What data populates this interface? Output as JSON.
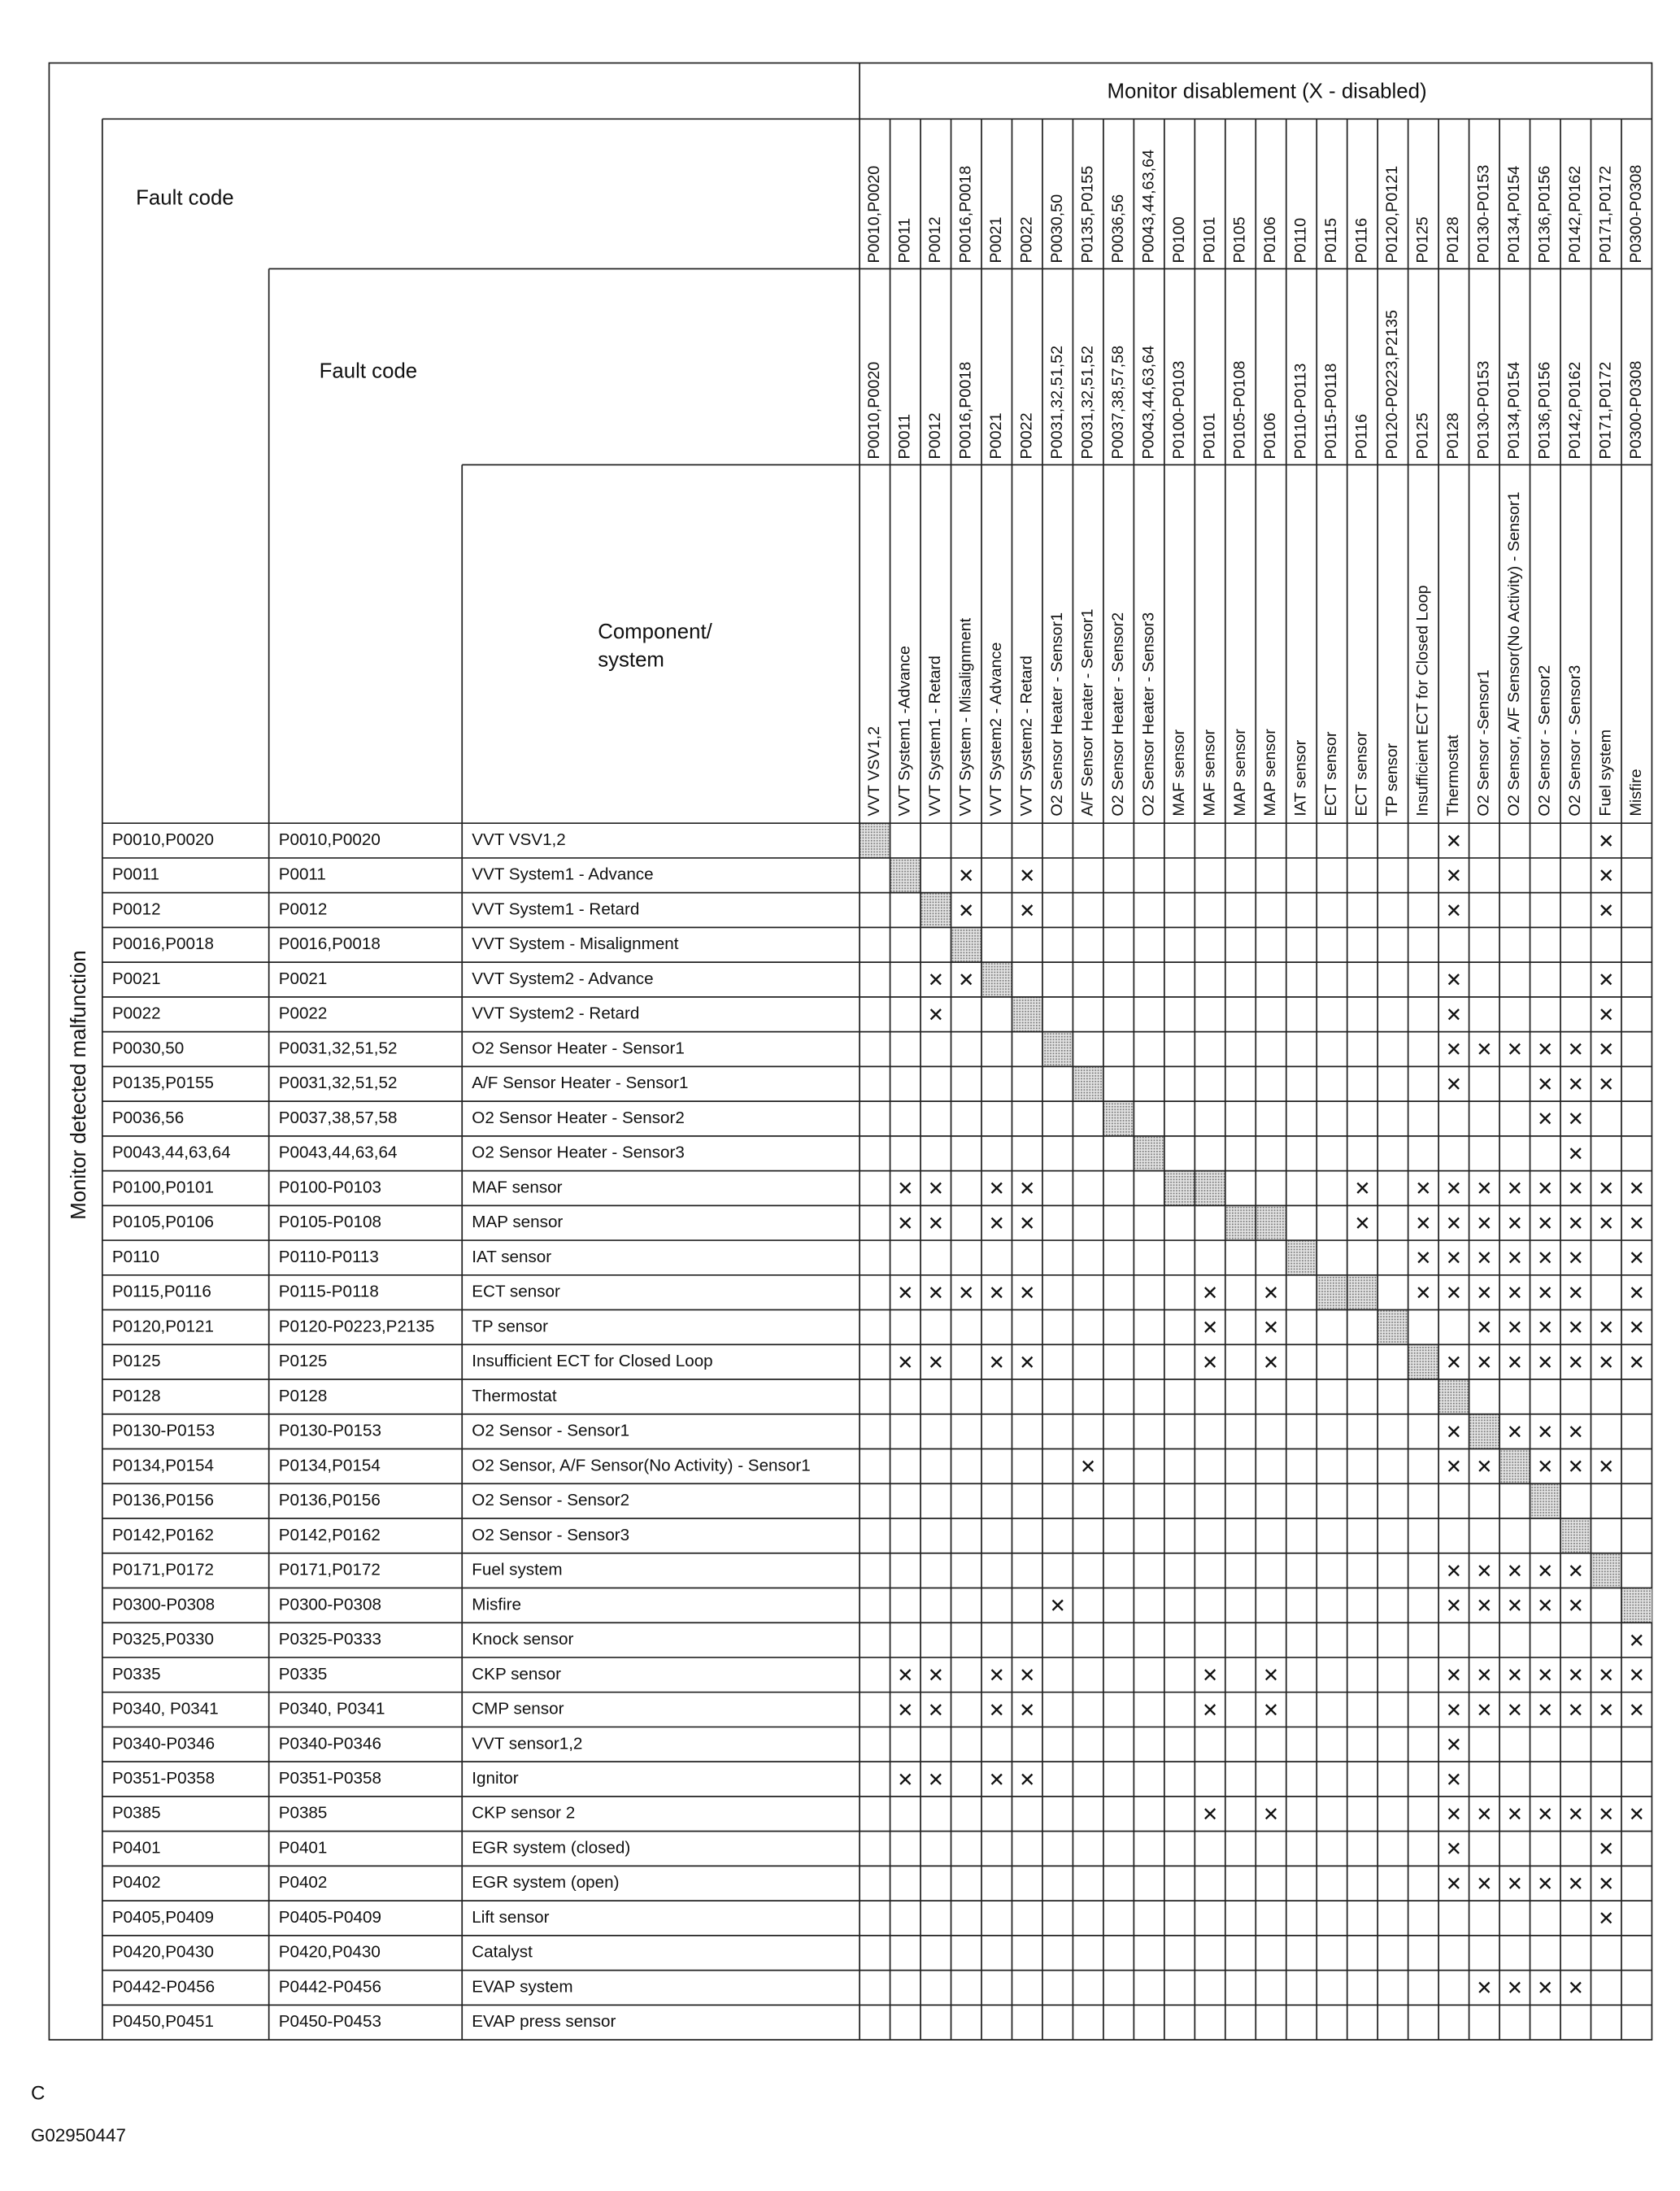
{
  "title": "Monitor disablement (X - disabled)",
  "header_fault_code_1": "Fault code",
  "header_fault_code_2": "Fault code",
  "header_component": [
    "Component/",
    "system"
  ],
  "side_label": "Monitor detected malfunction",
  "x_symbol": "✕",
  "footer": {
    "letter": "C",
    "figure_id": "G02950447"
  },
  "columns": [
    {
      "monitor_code": "P0010,P0020",
      "fault_code": "P0010,P0020",
      "component": "VVT VSV1,2"
    },
    {
      "monitor_code": "P0011",
      "fault_code": "P0011",
      "component": "VVT System1 -Advance"
    },
    {
      "monitor_code": "P0012",
      "fault_code": "P0012",
      "component": "VVT System1 - Retard"
    },
    {
      "monitor_code": "P0016,P0018",
      "fault_code": "P0016,P0018",
      "component": "VVT System - Misalignment"
    },
    {
      "monitor_code": "P0021",
      "fault_code": "P0021",
      "component": "VVT System2 - Advance"
    },
    {
      "monitor_code": "P0022",
      "fault_code": "P0022",
      "component": "VVT System2 - Retard"
    },
    {
      "monitor_code": "P0030,50",
      "fault_code": "P0031,32,51,52",
      "component": "O2 Sensor Heater - Sensor1"
    },
    {
      "monitor_code": "P0135,P0155",
      "fault_code": "P0031,32,51,52",
      "component": "A/F Sensor Heater - Sensor1"
    },
    {
      "monitor_code": "P0036,56",
      "fault_code": "P0037,38,57,58",
      "component": "O2 Sensor Heater - Sensor2"
    },
    {
      "monitor_code": "P0043,44,63,64",
      "fault_code": "P0043,44,63,64",
      "component": "O2 Sensor Heater  - Sensor3"
    },
    {
      "monitor_code": "P0100",
      "fault_code": "P0100-P0103",
      "component": "MAF sensor"
    },
    {
      "monitor_code": "P0101",
      "fault_code": "P0101",
      "component": "MAF sensor"
    },
    {
      "monitor_code": "P0105",
      "fault_code": "P0105-P0108",
      "component": "MAP sensor"
    },
    {
      "monitor_code": "P0106",
      "fault_code": "P0106",
      "component": "MAP sensor"
    },
    {
      "monitor_code": "P0110",
      "fault_code": "P0110-P0113",
      "component": "IAT sensor"
    },
    {
      "monitor_code": "P0115",
      "fault_code": "P0115-P0118",
      "component": "ECT sensor"
    },
    {
      "monitor_code": "P0116",
      "fault_code": "P0116",
      "component": "ECT sensor"
    },
    {
      "monitor_code": "P0120,P0121",
      "fault_code": "P0120-P0223,P2135",
      "component": "TP sensor"
    },
    {
      "monitor_code": "P0125",
      "fault_code": "P0125",
      "component": "Insufficient ECT for Closed Loop"
    },
    {
      "monitor_code": "P0128",
      "fault_code": "P0128",
      "component": "Thermostat"
    },
    {
      "monitor_code": "P0130-P0153",
      "fault_code": "P0130-P0153",
      "component": "O2 Sensor -Sensor1"
    },
    {
      "monitor_code": "P0134,P0154",
      "fault_code": "P0134,P0154",
      "component": "O2 Sensor, A/F Sensor(No Activity) - Sensor1"
    },
    {
      "monitor_code": "P0136,P0156",
      "fault_code": "P0136,P0156",
      "component": "O2 Sensor - Sensor2"
    },
    {
      "monitor_code": "P0142,P0162",
      "fault_code": "P0142,P0162",
      "component": "O2 Sensor - Sensor3"
    },
    {
      "monitor_code": "P0171,P0172",
      "fault_code": "P0171,P0172",
      "component": "Fuel system"
    },
    {
      "monitor_code": "P0300-P0308",
      "fault_code": "P0300-P0308",
      "component": "Misfire"
    }
  ],
  "rows": [
    {
      "monitor_code": "P0010,P0020",
      "fault_code": "P0010,P0020",
      "component": "VVT VSV1,2",
      "x": [
        19,
        24
      ],
      "shaded": [
        0
      ]
    },
    {
      "monitor_code": "P0011",
      "fault_code": "P0011",
      "component": "VVT System1 - Advance",
      "x": [
        3,
        5,
        19,
        24
      ],
      "shaded": [
        1
      ]
    },
    {
      "monitor_code": "P0012",
      "fault_code": "P0012",
      "component": "VVT System1 - Retard",
      "x": [
        3,
        5,
        19,
        24
      ],
      "shaded": [
        2
      ]
    },
    {
      "monitor_code": "P0016,P0018",
      "fault_code": "P0016,P0018",
      "component": "VVT System - Misalignment",
      "x": [],
      "shaded": [
        3
      ]
    },
    {
      "monitor_code": "P0021",
      "fault_code": "P0021",
      "component": "VVT System2 - Advance",
      "x": [
        2,
        3,
        19,
        24
      ],
      "shaded": [
        4
      ]
    },
    {
      "monitor_code": "P0022",
      "fault_code": "P0022",
      "component": "VVT System2 - Retard",
      "x": [
        2,
        19,
        24
      ],
      "shaded": [
        5
      ]
    },
    {
      "monitor_code": "P0030,50",
      "fault_code": "P0031,32,51,52",
      "component": "O2 Sensor Heater - Sensor1",
      "x": [
        19,
        20,
        21,
        22,
        23,
        24
      ],
      "shaded": [
        6
      ]
    },
    {
      "monitor_code": "P0135,P0155",
      "fault_code": "P0031,32,51,52",
      "component": "A/F Sensor Heater  - Sensor1",
      "x": [
        19,
        22,
        23,
        24
      ],
      "shaded": [
        7
      ]
    },
    {
      "monitor_code": "P0036,56",
      "fault_code": "P0037,38,57,58",
      "component": "O2 Sensor Heater - Sensor2",
      "x": [
        22,
        23
      ],
      "shaded": [
        8
      ]
    },
    {
      "monitor_code": "P0043,44,63,64",
      "fault_code": "P0043,44,63,64",
      "component": "O2 Sensor Heater - Sensor3",
      "x": [
        23
      ],
      "shaded": [
        9
      ]
    },
    {
      "monitor_code": "P0100,P0101",
      "fault_code": "P0100-P0103",
      "component": "MAF sensor",
      "x": [
        1,
        2,
        4,
        5,
        16,
        18,
        19,
        20,
        21,
        22,
        23,
        24,
        25
      ],
      "shaded": [
        10,
        11
      ]
    },
    {
      "monitor_code": "P0105,P0106",
      "fault_code": "P0105-P0108",
      "component": "MAP sensor",
      "x": [
        1,
        2,
        4,
        5,
        16,
        18,
        19,
        20,
        21,
        22,
        23,
        24,
        25
      ],
      "shaded": [
        12,
        13
      ]
    },
    {
      "monitor_code": "P0110",
      "fault_code": "P0110-P0113",
      "component": "IAT sensor",
      "x": [
        18,
        19,
        20,
        21,
        22,
        23,
        25
      ],
      "shaded": [
        14
      ]
    },
    {
      "monitor_code": "P0115,P0116",
      "fault_code": "P0115-P0118",
      "component": "ECT sensor",
      "x": [
        1,
        2,
        3,
        4,
        5,
        11,
        13,
        18,
        19,
        20,
        21,
        22,
        23,
        25
      ],
      "shaded": [
        15,
        16
      ]
    },
    {
      "monitor_code": "P0120,P0121",
      "fault_code": "P0120-P0223,P2135",
      "component": "TP sensor",
      "x": [
        11,
        13,
        20,
        21,
        22,
        23,
        24,
        25
      ],
      "shaded": [
        17
      ]
    },
    {
      "monitor_code": "P0125",
      "fault_code": "P0125",
      "component": "Insufficient ECT for Closed Loop",
      "x": [
        1,
        2,
        4,
        5,
        11,
        13,
        19,
        20,
        21,
        22,
        23,
        24,
        25
      ],
      "shaded": [
        18
      ]
    },
    {
      "monitor_code": "P0128",
      "fault_code": "P0128",
      "component": "Thermostat",
      "x": [],
      "shaded": [
        19
      ]
    },
    {
      "monitor_code": "P0130-P0153",
      "fault_code": "P0130-P0153",
      "component": "O2 Sensor - Sensor1",
      "x": [
        19,
        21,
        22,
        23
      ],
      "shaded": [
        20
      ]
    },
    {
      "monitor_code": "P0134,P0154",
      "fault_code": "P0134,P0154",
      "component": "O2 Sensor, A/F Sensor(No Activity) - Sensor1",
      "x": [
        7,
        19,
        20,
        22,
        23,
        24
      ],
      "shaded": [
        21
      ]
    },
    {
      "monitor_code": "P0136,P0156",
      "fault_code": "P0136,P0156",
      "component": "O2 Sensor - Sensor2",
      "x": [],
      "shaded": [
        22
      ]
    },
    {
      "monitor_code": "P0142,P0162",
      "fault_code": "P0142,P0162",
      "component": "O2 Sensor - Sensor3",
      "x": [],
      "shaded": [
        23
      ]
    },
    {
      "monitor_code": "P0171,P0172",
      "fault_code": "P0171,P0172",
      "component": "Fuel system",
      "x": [
        19,
        20,
        21,
        22,
        23
      ],
      "shaded": [
        24
      ]
    },
    {
      "monitor_code": "P0300-P0308",
      "fault_code": "P0300-P0308",
      "component": "Misfire",
      "x": [
        6,
        19,
        20,
        21,
        22,
        23
      ],
      "shaded": [
        25
      ]
    },
    {
      "monitor_code": "P0325,P0330",
      "fault_code": "P0325-P0333",
      "component": "Knock sensor",
      "x": [
        25
      ],
      "shaded": []
    },
    {
      "monitor_code": "P0335",
      "fault_code": "P0335",
      "component": "CKP sensor",
      "x": [
        1,
        2,
        4,
        5,
        11,
        13,
        19,
        20,
        21,
        22,
        23,
        24,
        25
      ],
      "shaded": []
    },
    {
      "monitor_code": "P0340, P0341",
      "fault_code": "P0340, P0341",
      "component": "CMP sensor",
      "x": [
        1,
        2,
        4,
        5,
        11,
        13,
        19,
        20,
        21,
        22,
        23,
        24,
        25
      ],
      "shaded": []
    },
    {
      "monitor_code": "P0340-P0346",
      "fault_code": "P0340-P0346",
      "component": "VVT sensor1,2",
      "x": [
        19
      ],
      "shaded": []
    },
    {
      "monitor_code": "P0351-P0358",
      "fault_code": "P0351-P0358",
      "component": "Ignitor",
      "x": [
        1,
        2,
        4,
        5,
        19
      ],
      "shaded": []
    },
    {
      "monitor_code": "P0385",
      "fault_code": "P0385",
      "component": "CKP sensor 2",
      "x": [
        11,
        13,
        19,
        20,
        21,
        22,
        23,
        24,
        25
      ],
      "shaded": []
    },
    {
      "monitor_code": "P0401",
      "fault_code": "P0401",
      "component": "EGR system (closed)",
      "x": [
        19,
        24
      ],
      "shaded": []
    },
    {
      "monitor_code": "P0402",
      "fault_code": "P0402",
      "component": "EGR system (open)",
      "x": [
        19,
        20,
        21,
        22,
        23,
        24
      ],
      "shaded": []
    },
    {
      "monitor_code": "P0405,P0409",
      "fault_code": "P0405-P0409",
      "component": "Lift sensor",
      "x": [
        24
      ],
      "shaded": []
    },
    {
      "monitor_code": "P0420,P0430",
      "fault_code": "P0420,P0430",
      "component": "Catalyst",
      "x": [],
      "shaded": []
    },
    {
      "monitor_code": "P0442-P0456",
      "fault_code": "P0442-P0456",
      "component": "EVAP system",
      "x": [
        20,
        21,
        22,
        23
      ],
      "shaded": []
    },
    {
      "monitor_code": "P0450,P0451",
      "fault_code": "P0450-P0453",
      "component": "EVAP press sensor",
      "x": [],
      "shaded": []
    }
  ]
}
